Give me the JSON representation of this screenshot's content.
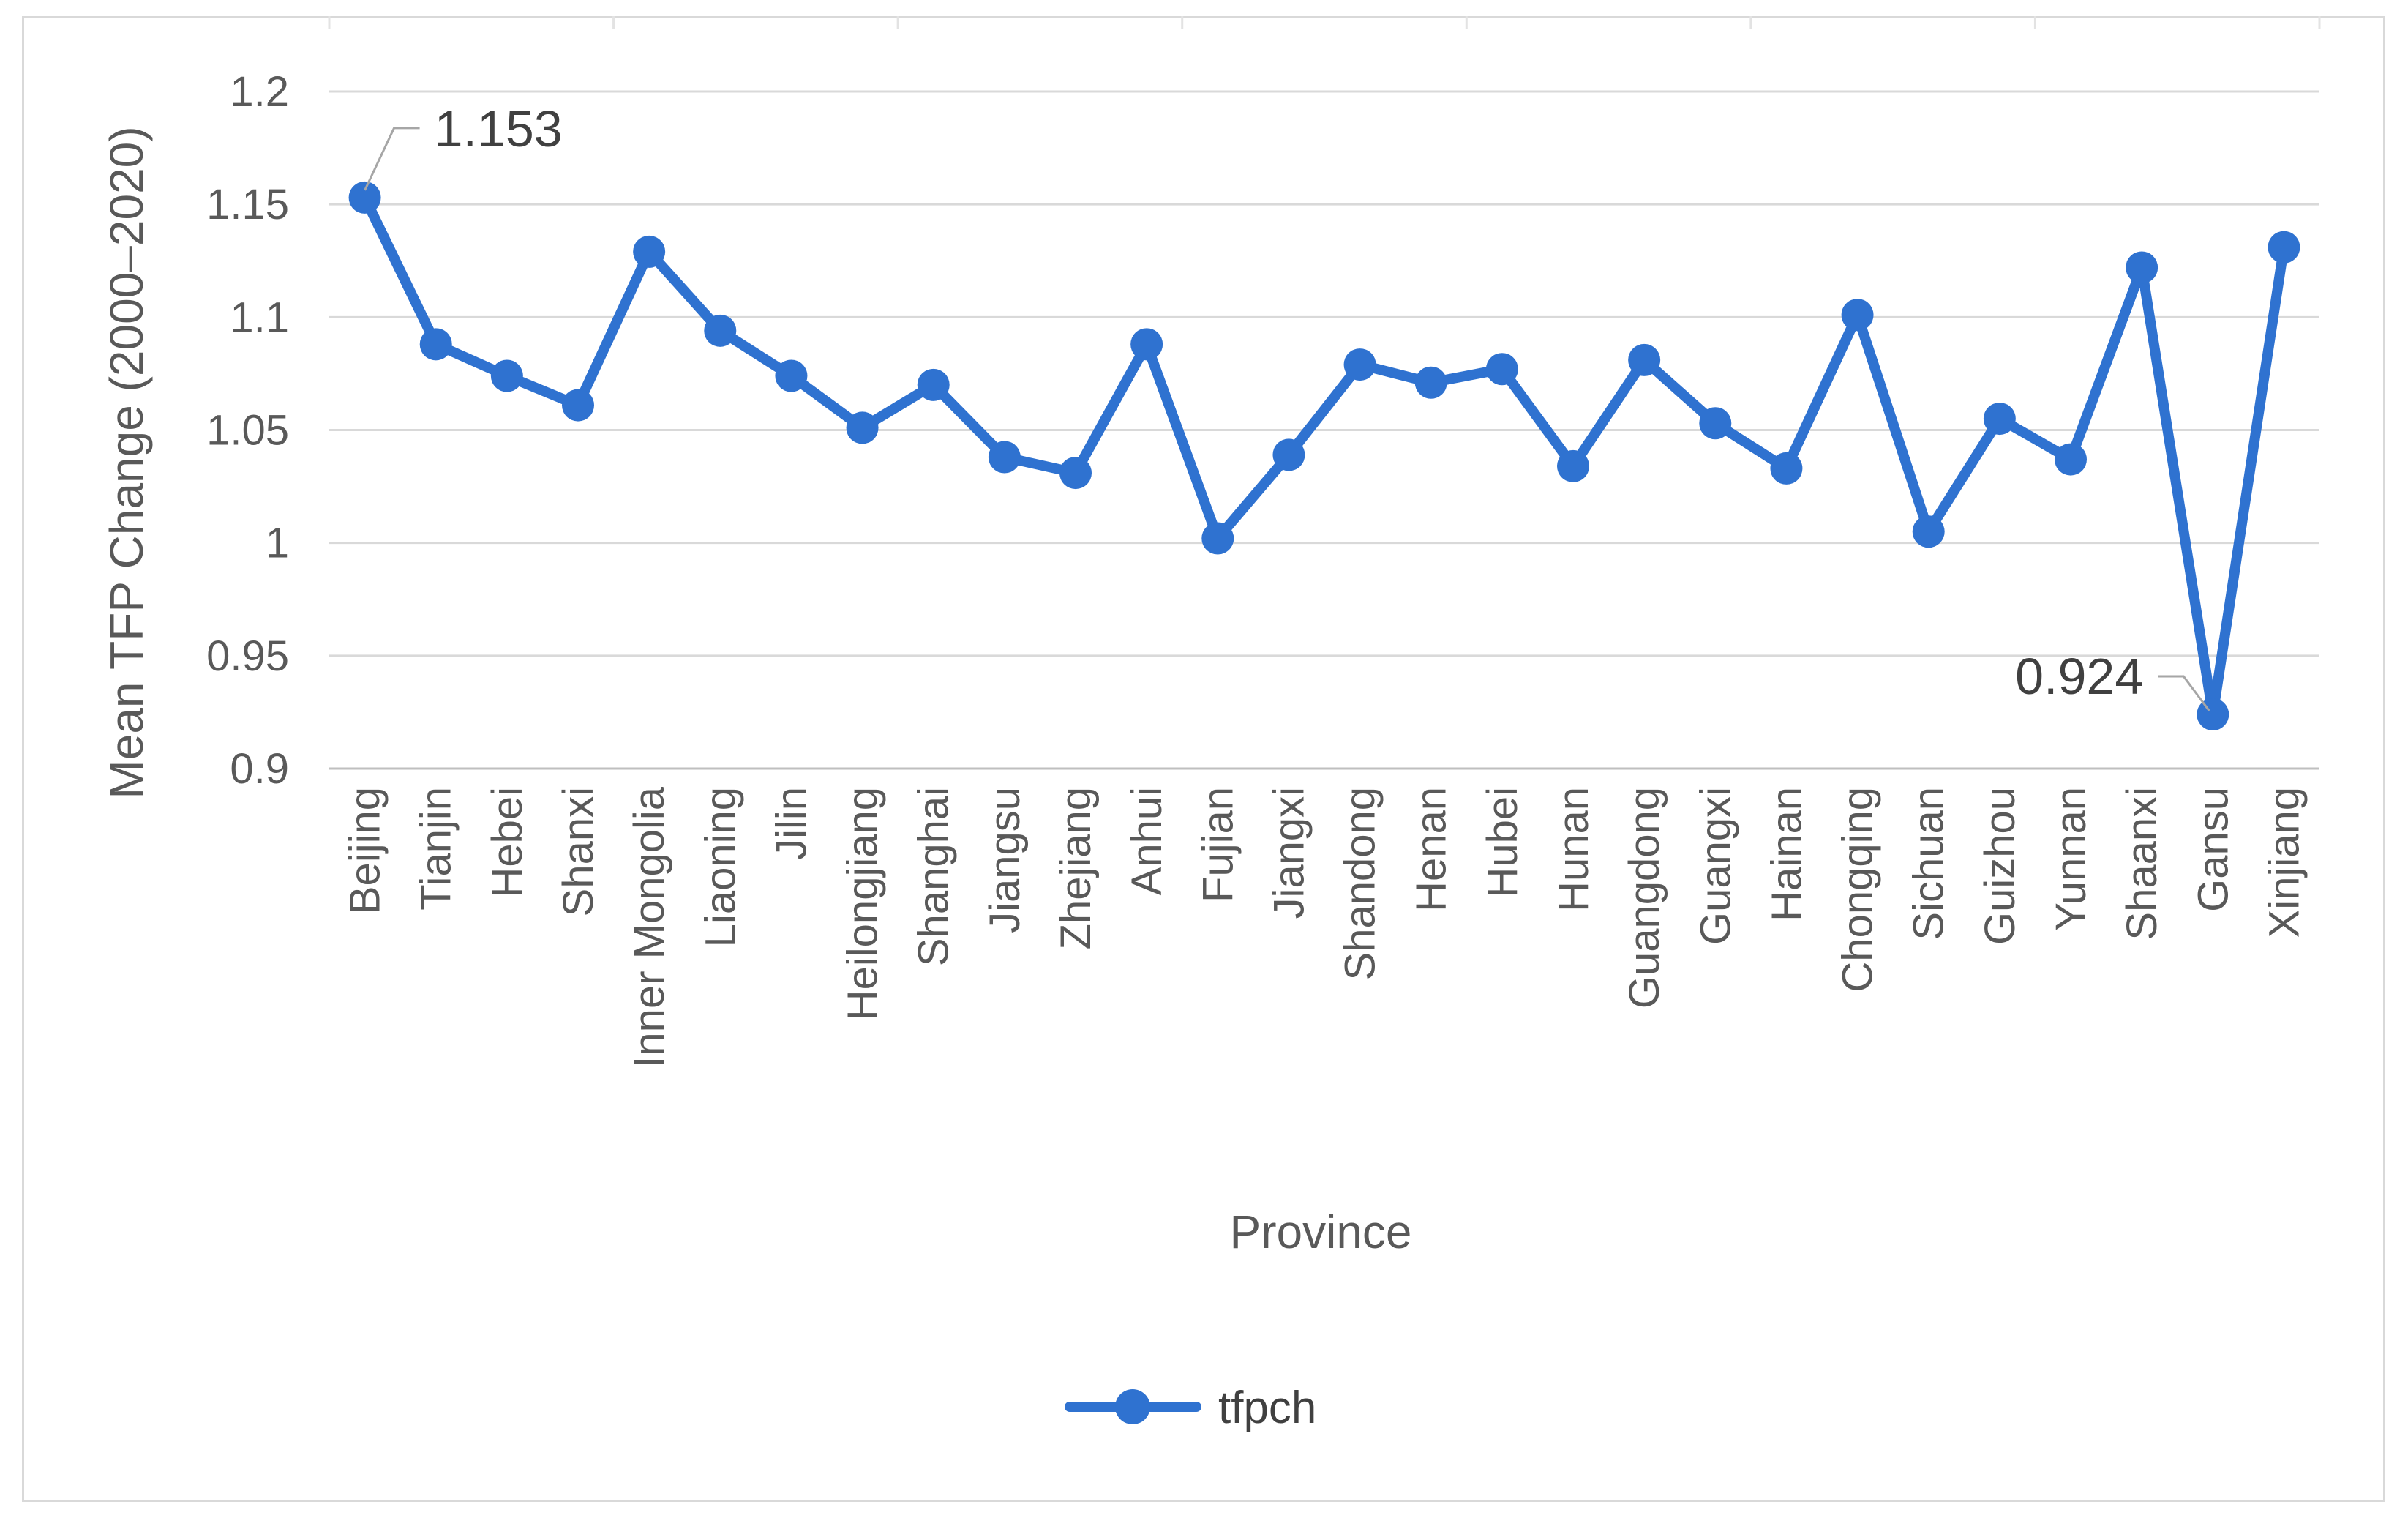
{
  "chart_data": {
    "type": "line",
    "xlabel": "Province",
    "ylabel": "Mean TFP Change (2000–2020)",
    "ylim": [
      0.9,
      1.2
    ],
    "yticks": [
      "0.9",
      "0.95",
      "1",
      "1.05",
      "1.1",
      "1.15",
      "1.2"
    ],
    "grid": true,
    "legend_position": "bottom",
    "categories": [
      "Beijing",
      "Tianjin",
      "Hebei",
      "Shanxi",
      "Inner Mongolia",
      "Liaoning",
      "Jilin",
      "Heilongjiang",
      "Shanghai",
      "Jiangsu",
      "Zhejiang",
      "Anhui",
      "Fujian",
      "Jiangxi",
      "Shandong",
      "Henan",
      "Hubei",
      "Hunan",
      "Guangdong",
      "Guangxi",
      "Hainan",
      "Chongqing",
      "Sichuan",
      "Guizhou",
      "Yunnan",
      "Shaanxi",
      "Gansu",
      "Xinjiang"
    ],
    "series": [
      {
        "name": "tfpch",
        "color": "#2f72d0",
        "values": [
          1.153,
          1.088,
          1.074,
          1.061,
          1.129,
          1.094,
          1.074,
          1.051,
          1.07,
          1.038,
          1.031,
          1.088,
          1.002,
          1.039,
          1.079,
          1.071,
          1.077,
          1.034,
          1.081,
          1.053,
          1.033,
          1.101,
          1.005,
          1.055,
          1.037,
          1.122,
          0.924,
          1.131
        ]
      }
    ],
    "annotations": [
      {
        "category": "Beijing",
        "text": "1.153"
      },
      {
        "category": "Gansu",
        "text": "0.924"
      }
    ]
  }
}
